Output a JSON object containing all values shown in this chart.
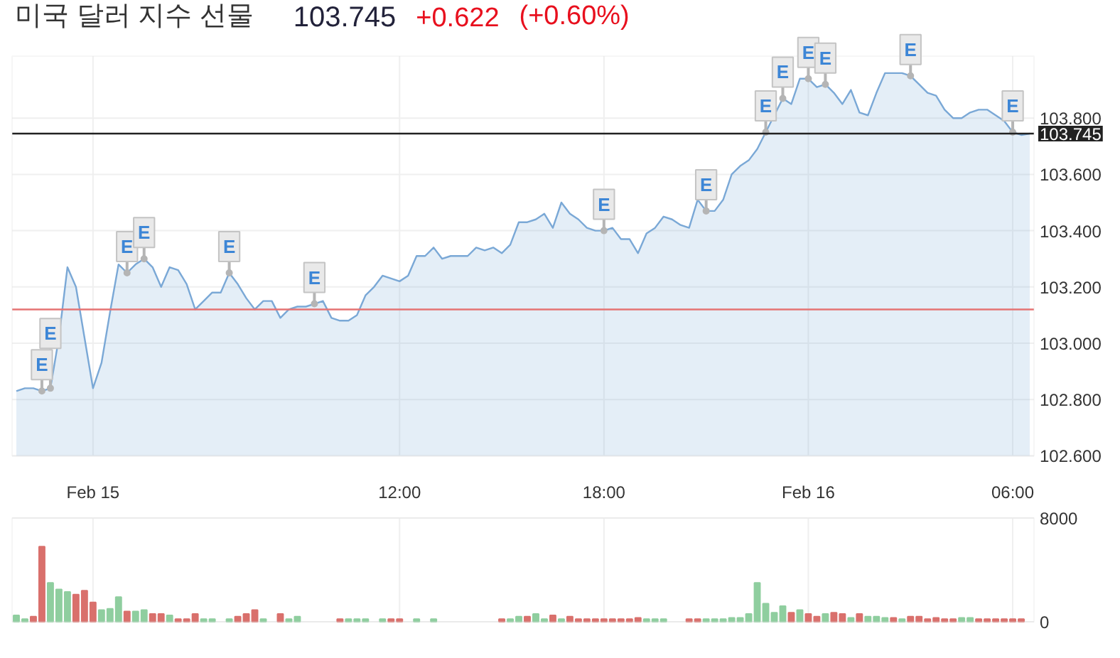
{
  "chart_data": [
    {
      "type": "area",
      "title": "미국 달러 지수 선물",
      "annotations": [
        "103.745",
        "+0.622",
        "(+0.60%)"
      ],
      "categories": [
        null,
        null,
        null,
        null,
        null,
        null,
        null,
        null,
        null,
        "Feb 15",
        null,
        null,
        null,
        null,
        null,
        null,
        null,
        null,
        null,
        null,
        null,
        null,
        null,
        null,
        null,
        null,
        null,
        null,
        null,
        null,
        null,
        null,
        null,
        null,
        null,
        null,
        null,
        null,
        null,
        null,
        null,
        null,
        null,
        null,
        null,
        "12:00",
        null,
        null,
        null,
        null,
        null,
        null,
        null,
        null,
        null,
        null,
        null,
        null,
        null,
        null,
        null,
        null,
        null,
        null,
        null,
        null,
        null,
        null,
        null,
        "18:00",
        null,
        null,
        null,
        null,
        null,
        null,
        null,
        null,
        null,
        null,
        null,
        null,
        null,
        null,
        null,
        null,
        null,
        null,
        null,
        null,
        null,
        null,
        null,
        "Feb 16",
        null,
        null,
        null,
        null,
        null,
        null,
        null,
        null,
        null,
        null,
        null,
        null,
        null,
        null,
        null,
        null,
        null,
        null,
        null,
        null,
        null,
        null,
        null,
        "06:00",
        null,
        null
      ],
      "ylim": [
        102.6,
        104.02
      ],
      "yticks": [
        {
          "value": 102.6,
          "label": "102.600"
        },
        {
          "value": 102.8,
          "label": "102.800"
        },
        {
          "value": 103,
          "label": "103.000"
        },
        {
          "value": 103.2,
          "label": "103.200"
        },
        {
          "value": 103.4,
          "label": "103.400"
        },
        {
          "value": 103.6,
          "label": "103.600"
        },
        {
          "value": 103.8,
          "label": "103.800"
        }
      ],
      "grid": true,
      "ref_lines": [
        {
          "axis": "y",
          "value": 103.745,
          "label": "103.745",
          "color": "#222222"
        },
        {
          "axis": "y",
          "value": 103.12,
          "color": "#e57373"
        }
      ],
      "series": [
        {
          "color": "#7aa8d6",
          "values": [
            102.83,
            102.84,
            102.84,
            102.83,
            102.84,
            103.02,
            103.27,
            103.2,
            103.02,
            102.84,
            102.93,
            103.11,
            103.28,
            103.25,
            103.28,
            103.3,
            103.27,
            103.2,
            103.27,
            103.26,
            103.21,
            103.12,
            103.15,
            103.18,
            103.18,
            103.25,
            103.21,
            103.16,
            103.12,
            103.15,
            103.15,
            103.09,
            103.12,
            103.13,
            103.13,
            103.14,
            103.15,
            103.09,
            103.08,
            103.08,
            103.1,
            103.17,
            103.2,
            103.24,
            103.23,
            103.22,
            103.24,
            103.31,
            103.31,
            103.34,
            103.3,
            103.31,
            103.31,
            103.31,
            103.34,
            103.33,
            103.34,
            103.32,
            103.35,
            103.43,
            103.43,
            103.44,
            103.46,
            103.41,
            103.5,
            103.46,
            103.44,
            103.41,
            103.4,
            103.4,
            103.41,
            103.37,
            103.37,
            103.32,
            103.39,
            103.41,
            103.45,
            103.44,
            103.42,
            103.41,
            103.51,
            103.47,
            103.47,
            103.51,
            103.6,
            103.63,
            103.65,
            103.69,
            103.75,
            103.81,
            103.87,
            103.85,
            103.94,
            103.94,
            103.91,
            103.92,
            103.89,
            103.85,
            103.9,
            103.82,
            103.81,
            103.89,
            103.96,
            103.96,
            103.96,
            103.95,
            103.92,
            103.89,
            103.88,
            103.83,
            103.8,
            103.8,
            103.82,
            103.83,
            103.83,
            103.81,
            103.79,
            103.75,
            103.74,
            103.745
          ]
        },
        {
          "type": "scatter",
          "color": "#b5b5b5",
          "marker": "circle",
          "values": [
            null,
            null,
            null,
            102.83,
            102.84,
            null,
            null,
            null,
            null,
            null,
            null,
            null,
            null,
            103.25,
            null,
            103.3,
            null,
            null,
            null,
            null,
            null,
            null,
            null,
            null,
            null,
            103.25,
            null,
            null,
            null,
            null,
            null,
            null,
            null,
            null,
            null,
            103.14,
            null,
            null,
            null,
            null,
            null,
            null,
            null,
            null,
            null,
            null,
            null,
            null,
            null,
            null,
            null,
            null,
            null,
            null,
            null,
            null,
            null,
            null,
            null,
            null,
            null,
            null,
            null,
            null,
            null,
            null,
            null,
            null,
            null,
            103.4,
            null,
            null,
            null,
            null,
            null,
            null,
            null,
            null,
            null,
            null,
            null,
            103.47,
            null,
            null,
            null,
            null,
            null,
            null,
            103.75,
            null,
            103.87,
            null,
            null,
            103.94,
            null,
            103.92,
            null,
            null,
            null,
            null,
            null,
            null,
            null,
            null,
            null,
            103.95,
            null,
            null,
            null,
            null,
            null,
            null,
            null,
            null,
            null,
            null,
            null,
            103.75,
            null,
            null
          ],
          "value_labels": [
            null,
            null,
            null,
            "E",
            "E",
            null,
            null,
            null,
            null,
            null,
            null,
            null,
            null,
            "E",
            null,
            "E",
            null,
            null,
            null,
            null,
            null,
            null,
            null,
            null,
            null,
            "E",
            null,
            null,
            null,
            null,
            null,
            null,
            null,
            null,
            null,
            "E",
            null,
            null,
            null,
            null,
            null,
            null,
            null,
            null,
            null,
            null,
            null,
            null,
            null,
            null,
            null,
            null,
            null,
            null,
            null,
            null,
            null,
            null,
            null,
            null,
            null,
            null,
            null,
            null,
            null,
            null,
            null,
            null,
            null,
            "E",
            null,
            null,
            null,
            null,
            null,
            null,
            null,
            null,
            null,
            null,
            null,
            "E",
            null,
            null,
            null,
            null,
            null,
            null,
            "E",
            null,
            "E",
            null,
            null,
            "E",
            null,
            "E",
            null,
            null,
            null,
            null,
            null,
            null,
            null,
            null,
            null,
            "E",
            null,
            null,
            null,
            null,
            null,
            null,
            null,
            null,
            null,
            null,
            null,
            "E",
            null,
            null
          ]
        }
      ]
    },
    {
      "type": "bar",
      "tick_labels": "y",
      "grid": true,
      "categories": [
        null,
        null,
        null,
        null,
        null,
        null,
        null,
        null,
        null,
        null,
        null,
        null,
        null,
        null,
        null,
        null,
        null,
        null,
        null,
        null,
        null,
        null,
        null,
        null,
        null,
        null,
        null,
        null,
        null,
        null,
        null,
        null,
        null,
        null,
        null,
        null,
        null,
        null,
        null,
        null,
        null,
        null,
        null,
        null,
        null,
        null,
        null,
        null,
        null,
        null,
        null,
        null,
        null,
        null,
        null,
        null,
        null,
        null,
        null,
        null,
        null,
        null,
        null,
        null,
        null,
        null,
        null,
        null,
        null,
        null,
        null,
        null,
        null,
        null,
        null,
        null,
        null,
        null,
        null,
        null,
        null,
        null,
        null,
        null,
        null,
        null,
        null,
        null,
        null,
        null,
        null,
        null,
        null,
        null,
        null,
        null,
        null,
        null,
        null,
        null,
        null,
        null,
        null,
        null,
        null,
        null,
        null,
        null,
        null,
        null,
        null,
        null,
        null,
        null,
        null,
        null,
        null,
        null,
        null,
        null
      ],
      "ylim": [
        0,
        8000
      ],
      "yticks": [
        0,
        8000
      ],
      "series": [
        {
          "color": "#8fce9f",
          "values": [
            500,
            200,
            null,
            null,
            3000,
            2500,
            2300,
            null,
            null,
            null,
            900,
            1000,
            1900,
            null,
            800,
            900,
            null,
            null,
            500,
            null,
            null,
            null,
            200,
            200,
            null,
            200,
            null,
            null,
            null,
            200,
            null,
            null,
            200,
            400,
            null,
            null,
            null,
            null,
            null,
            200,
            200,
            200,
            null,
            200,
            null,
            null,
            null,
            200,
            null,
            200,
            null,
            null,
            null,
            null,
            null,
            null,
            null,
            null,
            200,
            400,
            null,
            600,
            200,
            null,
            200,
            null,
            null,
            null,
            null,
            null,
            null,
            null,
            null,
            null,
            200,
            200,
            200,
            null,
            null,
            null,
            null,
            200,
            200,
            200,
            300,
            300,
            600,
            3000,
            1400,
            700,
            1200,
            null,
            900,
            null,
            null,
            600,
            null,
            null,
            300,
            null,
            400,
            400,
            300,
            null,
            200,
            null,
            null,
            null,
            null,
            null,
            null,
            300,
            300,
            null,
            null,
            null,
            null,
            null,
            null,
            null
          ]
        },
        {
          "color": "#d9706c",
          "values": [
            null,
            null,
            400,
            5800,
            null,
            null,
            null,
            2100,
            2400,
            1500,
            null,
            null,
            null,
            800,
            null,
            null,
            600,
            600,
            null,
            200,
            200,
            600,
            null,
            null,
            null,
            null,
            400,
            600,
            900,
            null,
            null,
            600,
            null,
            null,
            null,
            null,
            null,
            null,
            200,
            null,
            null,
            null,
            null,
            null,
            200,
            200,
            null,
            null,
            null,
            null,
            null,
            null,
            null,
            null,
            null,
            null,
            null,
            200,
            null,
            null,
            400,
            null,
            null,
            500,
            null,
            400,
            200,
            200,
            200,
            200,
            200,
            200,
            200,
            300,
            null,
            null,
            null,
            null,
            null,
            200,
            200,
            null,
            null,
            null,
            null,
            null,
            null,
            null,
            null,
            null,
            null,
            700,
            null,
            600,
            400,
            null,
            700,
            600,
            null,
            600,
            null,
            null,
            null,
            300,
            null,
            400,
            400,
            200,
            300,
            200,
            200,
            null,
            null,
            200,
            200,
            200,
            200,
            200,
            200,
            null
          ]
        }
      ]
    }
  ]
}
